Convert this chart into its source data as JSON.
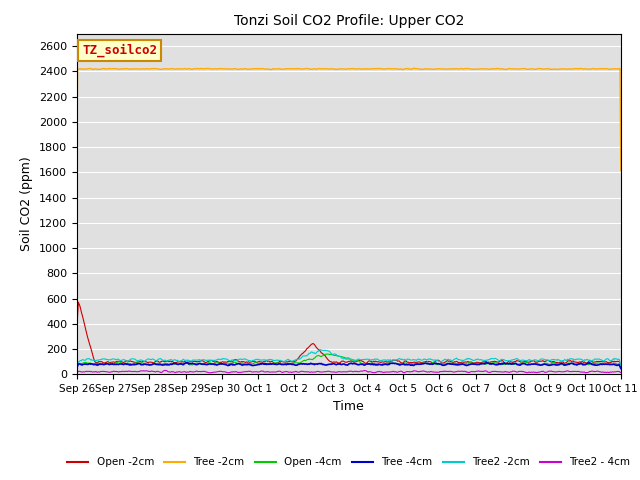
{
  "title": "Tonzi Soil CO2 Profile: Upper CO2",
  "xlabel": "Time",
  "ylabel": "Soil CO2 (ppm)",
  "ylim": [
    0,
    2700
  ],
  "yticks": [
    0,
    200,
    400,
    600,
    800,
    1000,
    1200,
    1400,
    1600,
    1800,
    2000,
    2200,
    2400,
    2600
  ],
  "xtick_labels": [
    "Sep 26",
    "Sep 27",
    "Sep 28",
    "Sep 29",
    "Sep 30",
    "Oct 1",
    "Oct 2",
    "Oct 3",
    "Oct 4",
    "Oct 5",
    "Oct 6",
    "Oct 7",
    "Oct 8",
    "Oct 9",
    "Oct 10",
    "Oct 11"
  ],
  "annotation_text": "TZ_soilco2",
  "annotation_color": "#cc0000",
  "annotation_bg": "#ffffcc",
  "annotation_border": "#cc8800",
  "background_color": "#e0e0e0",
  "series": {
    "Open_2cm": {
      "color": "#cc0000",
      "label": "Open -2cm"
    },
    "Tree_2cm": {
      "color": "#ffaa00",
      "label": "Tree -2cm"
    },
    "Open_4cm": {
      "color": "#00cc00",
      "label": "Open -4cm"
    },
    "Tree_4cm": {
      "color": "#0000cc",
      "label": "Tree -4cm"
    },
    "Tree2_2cm": {
      "color": "#00cccc",
      "label": "Tree2 -2cm"
    },
    "Tree2_4cm": {
      "color": "#cc00cc",
      "label": "Tree2 - 4cm"
    }
  }
}
